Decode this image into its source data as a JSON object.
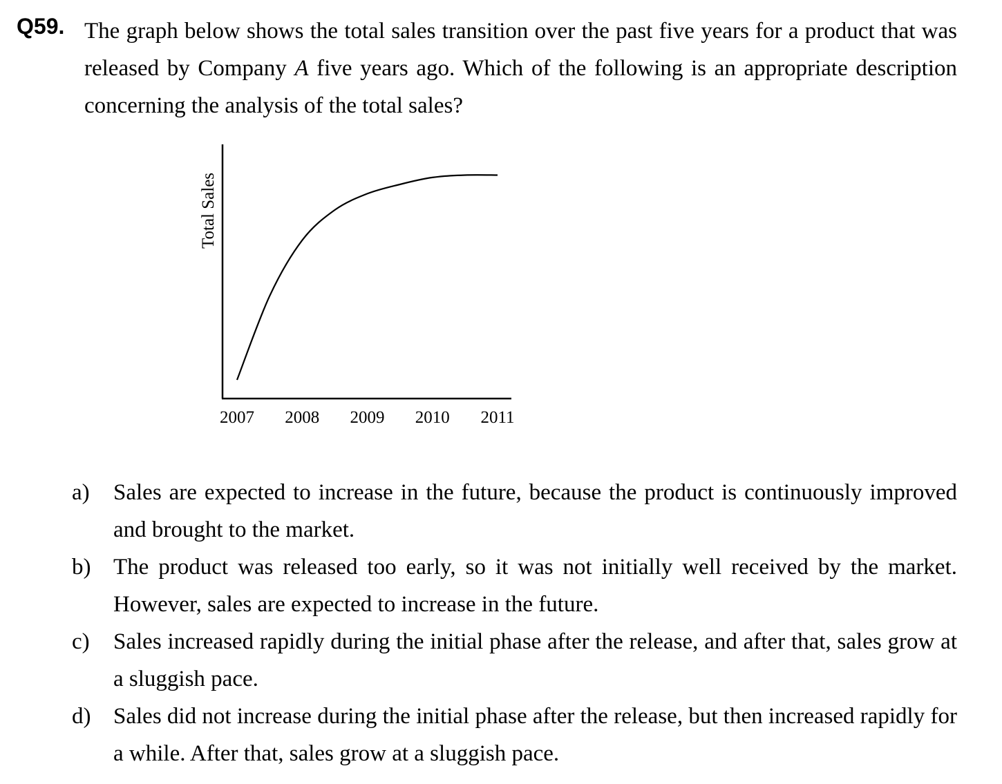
{
  "question": {
    "number": "Q59.",
    "text_before": "The graph below shows the total sales transition over the past five years for a product that was released by Company ",
    "company": "A",
    "text_after": " five years ago.  Which of the following is an appropriate description concerning the analysis of the total sales?"
  },
  "chart_data": {
    "type": "line",
    "title": "",
    "xlabel": "",
    "ylabel": "Total Sales",
    "categories": [
      "2007",
      "2008",
      "2009",
      "2010",
      "2011"
    ],
    "series": [
      {
        "x": [
          2007,
          2007.5,
          2008,
          2008.5,
          2009,
          2009.5,
          2010,
          2010.5,
          2011
        ],
        "values": [
          0.08,
          0.44,
          0.68,
          0.81,
          0.88,
          0.92,
          0.95,
          0.96,
          0.96
        ]
      }
    ],
    "ylim": [
      0,
      1
    ],
    "grid": false,
    "legend": "none",
    "colors": {
      "line": "#000000",
      "axes": "#000000"
    }
  },
  "options": [
    {
      "label": "a)",
      "text": "Sales are expected to increase in the future, because the product is continuously improved and brought to the market."
    },
    {
      "label": "b)",
      "text": "The product was released too early, so it was not initially well received by the market.   However, sales are expected to increase in the future."
    },
    {
      "label": "c)",
      "text": "Sales increased rapidly during the initial phase after the release, and after that, sales grow at a sluggish pace."
    },
    {
      "label": "d)",
      "text": "Sales did not increase during the initial phase after the release, but then increased rapidly for a while.   After that, sales grow at a sluggish pace."
    }
  ]
}
